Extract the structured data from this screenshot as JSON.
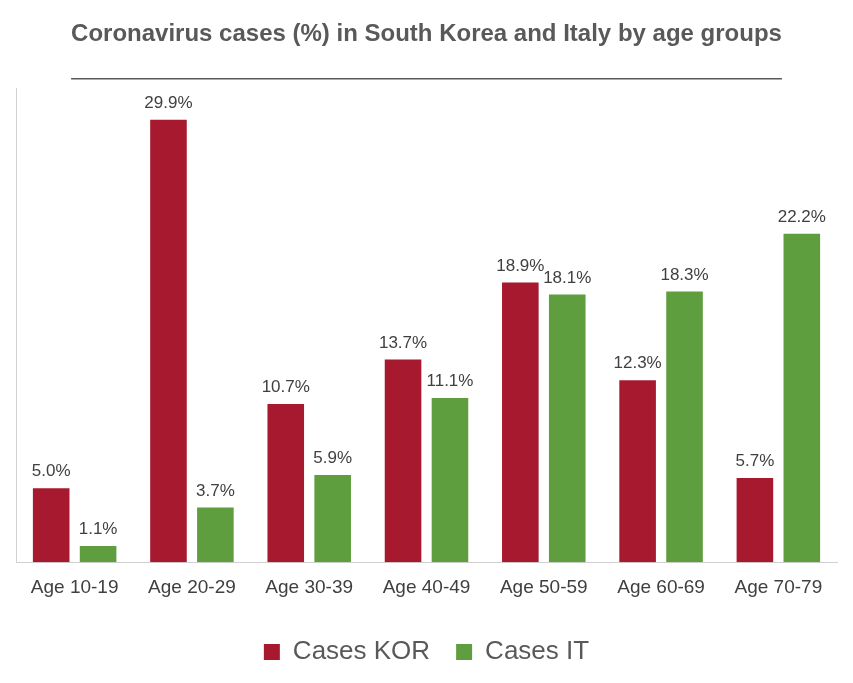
{
  "chart_data": {
    "type": "bar",
    "title": "Coronavirus cases (%) in South Korea and Italy by age groups",
    "categories": [
      "Age 10-19",
      "Age 20-29",
      "Age 30-39",
      "Age 40-49",
      "Age 50-59",
      "Age 60-69",
      "Age 70-79"
    ],
    "series": [
      {
        "name": "Cases KOR",
        "color": "#a6192e",
        "values": [
          5.0,
          29.9,
          10.7,
          13.7,
          18.9,
          12.3,
          5.7
        ],
        "value_labels": [
          "5.0%",
          "29.9%",
          "10.7%",
          "13.7%",
          "18.9%",
          "12.3%",
          "5.7%"
        ]
      },
      {
        "name": "Cases IT",
        "color": "#5f9e3f",
        "values": [
          1.1,
          3.7,
          5.9,
          11.1,
          18.1,
          18.3,
          22.2
        ],
        "value_labels": [
          "1.1%",
          "3.7%",
          "5.9%",
          "11.1%",
          "18.1%",
          "18.3%",
          "22.2%"
        ]
      }
    ],
    "ylim": [
      0,
      32
    ],
    "grid": false,
    "legend": "bottom",
    "data_labels": true,
    "tick_labels": "x"
  }
}
